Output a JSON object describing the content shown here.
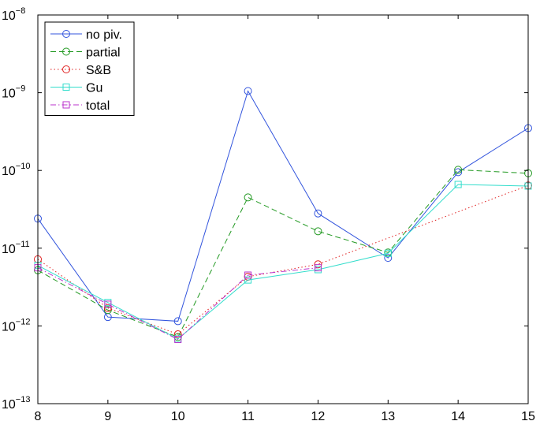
{
  "chart_data": {
    "type": "line",
    "title": "",
    "xlabel": "",
    "ylabel": "",
    "x": [
      8,
      9,
      10,
      11,
      12,
      13,
      14,
      15
    ],
    "xlim": [
      8,
      15
    ],
    "ylim": [
      1e-13,
      1e-08
    ],
    "yscale": "log",
    "x_ticks": [
      "8",
      "9",
      "10",
      "11",
      "12",
      "13",
      "14",
      "15"
    ],
    "y_ticks": [
      {
        "base": "10",
        "exp": "−13",
        "value": 1e-13
      },
      {
        "base": "10",
        "exp": "−12",
        "value": 1e-12
      },
      {
        "base": "10",
        "exp": "−11",
        "value": 1e-11
      },
      {
        "base": "10",
        "exp": "−10",
        "value": 1e-10
      },
      {
        "base": "10",
        "exp": "−9",
        "value": 1e-09
      },
      {
        "base": "10",
        "exp": "−8",
        "value": 1e-08
      }
    ],
    "grid": false,
    "legend_position": "top-left",
    "series": [
      {
        "name": "no piv.",
        "color": "#3355dd",
        "dash": "solid",
        "marker": "circle",
        "values": [
          2.4e-11,
          1.3e-12,
          1.15e-12,
          1.05e-09,
          2.8e-11,
          7.5e-12,
          9.5e-11,
          3.5e-10
        ]
      },
      {
        "name": "partial",
        "color": "#229922",
        "dash": "dashed",
        "marker": "circle",
        "values": [
          5.2e-12,
          1.6e-12,
          7.2e-13,
          4.5e-11,
          1.65e-11,
          8.8e-12,
          1.02e-10,
          9.2e-11
        ]
      },
      {
        "name": "S&B",
        "color": "#e02020",
        "dash": "dotted",
        "marker": "circle",
        "values": [
          7.2e-12,
          1.7e-12,
          7.8e-13,
          4.3e-12,
          6.2e-12,
          null,
          null,
          6.4e-11
        ]
      },
      {
        "name": "Gu",
        "color": "#33ddcc",
        "dash": "solid",
        "marker": "square",
        "values": [
          6e-12,
          2e-12,
          6.8e-13,
          3.9e-12,
          5.3e-12,
          8.6e-12,
          6.6e-11,
          6.3e-11
        ]
      },
      {
        "name": "total",
        "color": "#bb33cc",
        "dash": "dashdot",
        "marker": "square",
        "values": [
          5.6e-12,
          1.9e-12,
          6.7e-13,
          4.5e-12,
          5.6e-12,
          null,
          null,
          null
        ]
      }
    ]
  }
}
